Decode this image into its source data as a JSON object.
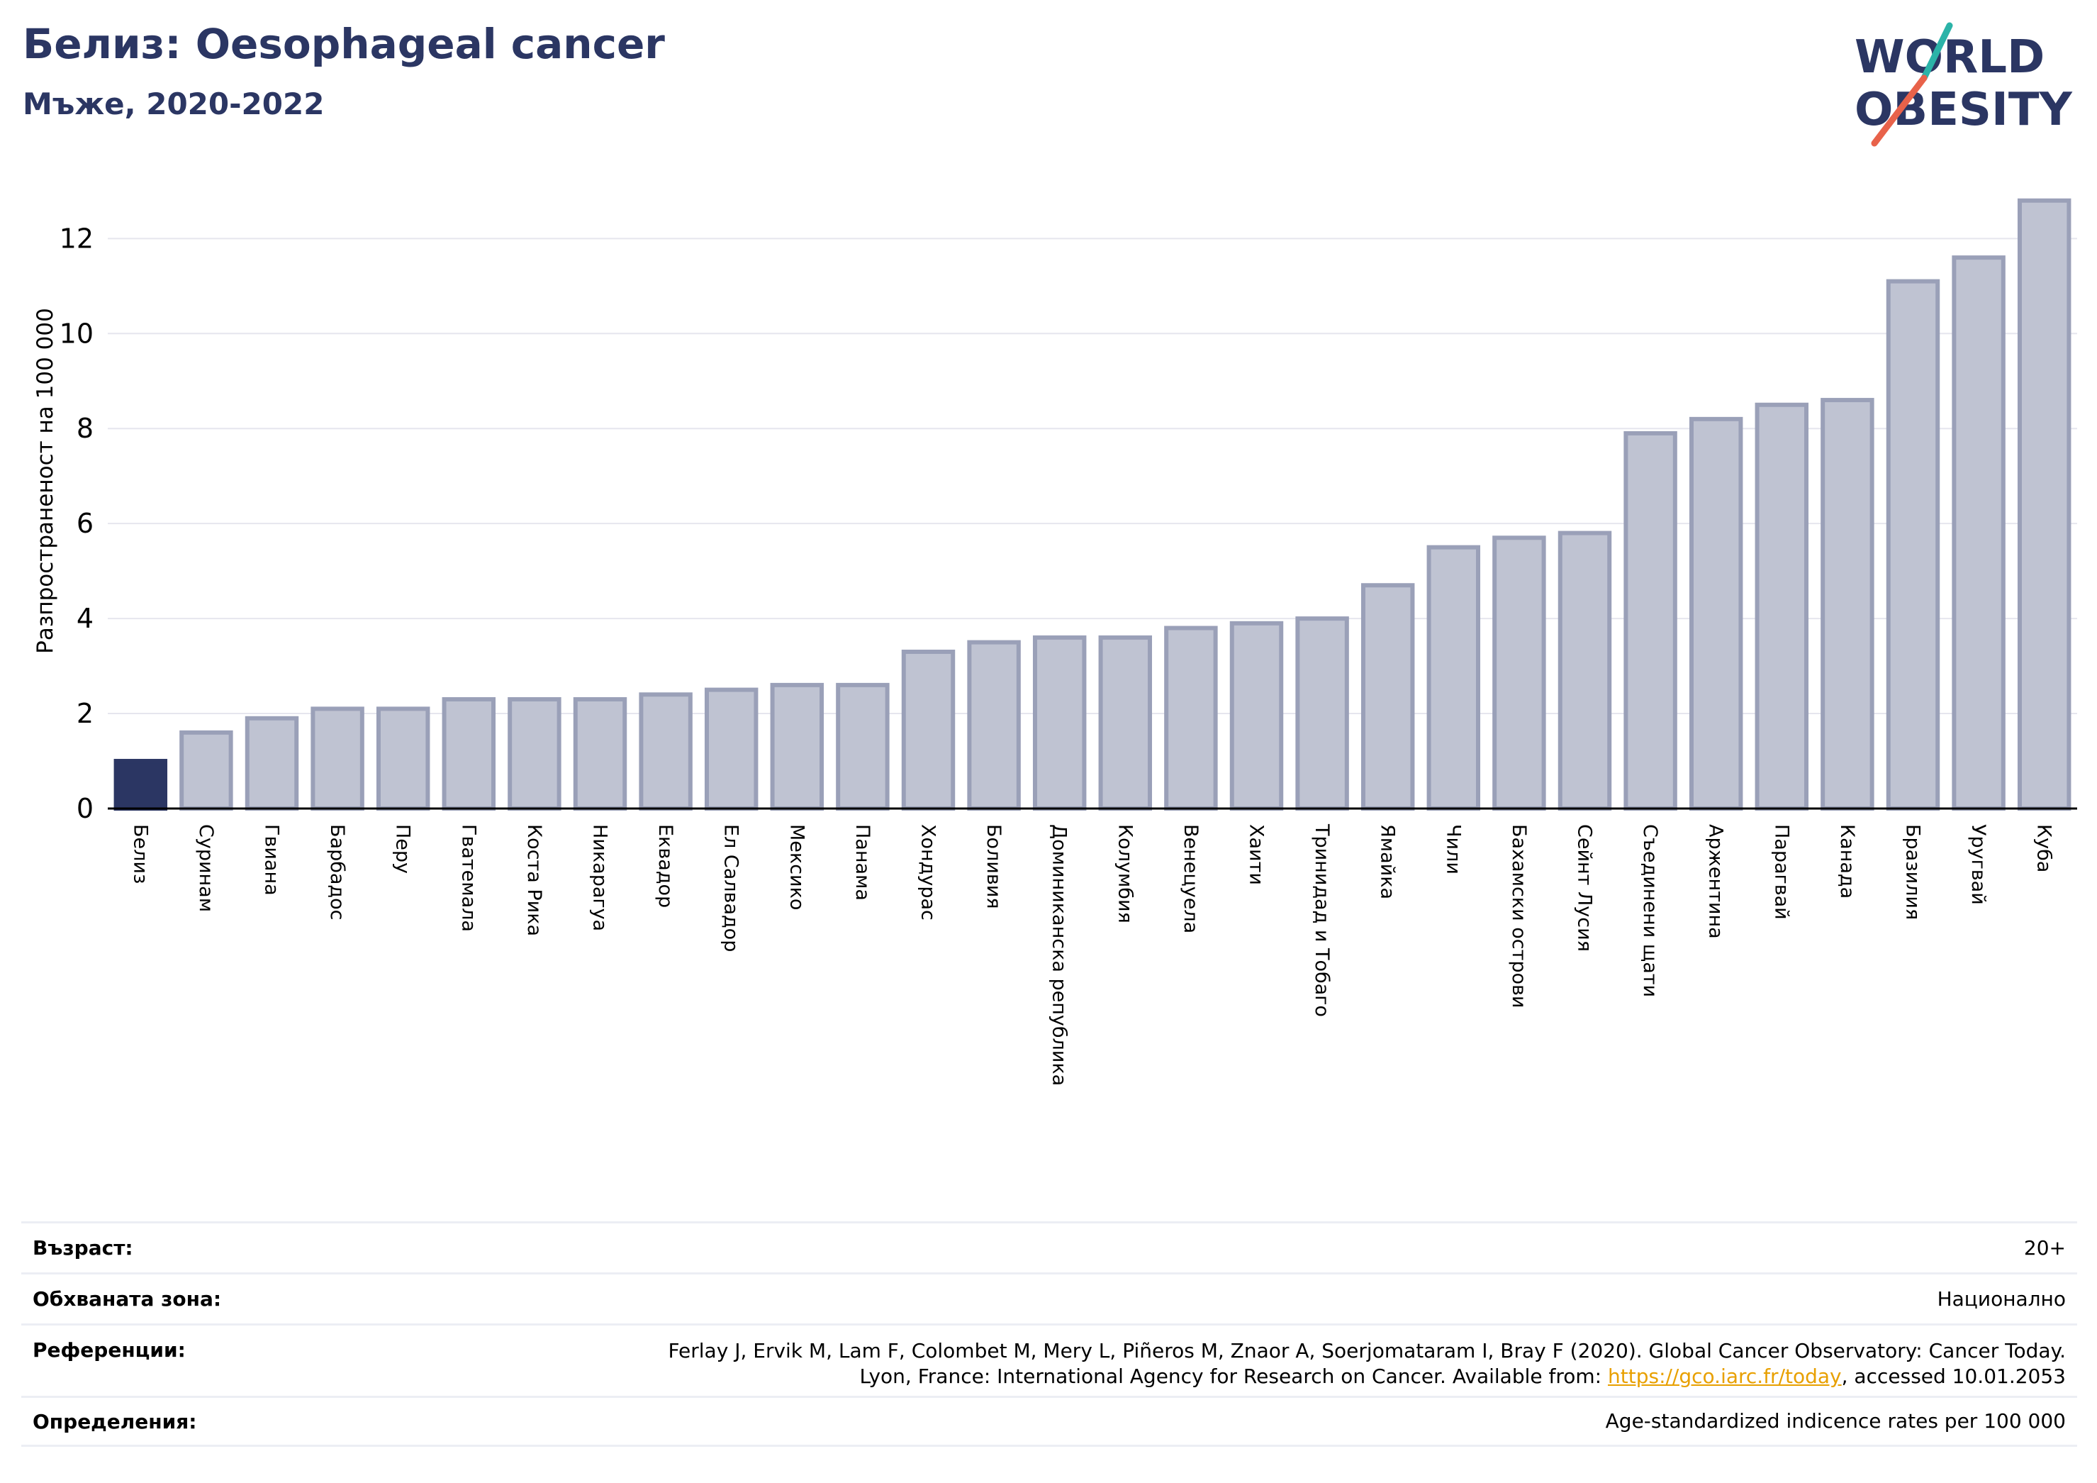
{
  "header": {
    "title": "Белиз: Oesophageal cancer",
    "subtitle": "Мъже, 2020-2022"
  },
  "logo": {
    "line1": "WORLD",
    "line2": "OBESITY",
    "colors": {
      "text": "#2b3663",
      "slash_top": "#2bb3a8",
      "slash_bottom": "#e8624a"
    }
  },
  "colors": {
    "highlight_bar": "#2b3663",
    "other_bar_fill": "#bfc3d2",
    "other_bar_edge": "#9aa0b8",
    "gridline": "#e6e6ee"
  },
  "chart_data": {
    "type": "bar",
    "ylabel": "Разпространеност  на 100 000",
    "ylim": [
      0,
      13.2
    ],
    "yticks": [
      0,
      2,
      4,
      6,
      8,
      10,
      12
    ],
    "grid": true,
    "highlight": "Белиз",
    "categories": [
      "Белиз",
      "Суринам",
      "Гвиана",
      "Барбадос",
      "Перу",
      "Гватемала",
      "Коста Рика",
      "Никарагуа",
      "Еквадор",
      "Ел Салвадор",
      "Мексико",
      "Панама",
      "Хондурас",
      "Боливия",
      "Доминиканска република",
      "Колумбия",
      "Венецуела",
      "Хаити",
      "Тринидад и Тобаго",
      "Ямайка",
      "Чили",
      "Бахамски острови",
      "Сейнт Лусия",
      "Съединени щати",
      "Аржентина",
      "Парагвай",
      "Канада",
      "Бразилия",
      "Уругвай",
      "Куба"
    ],
    "values": [
      1.0,
      1.6,
      1.9,
      2.1,
      2.1,
      2.3,
      2.3,
      2.3,
      2.4,
      2.5,
      2.6,
      2.6,
      3.3,
      3.5,
      3.6,
      3.6,
      3.8,
      3.9,
      4.0,
      4.7,
      5.5,
      5.7,
      5.8,
      7.9,
      8.2,
      8.5,
      8.6,
      11.1,
      11.6,
      12.8
    ]
  },
  "info": {
    "age_label": "Възраст:",
    "age_value": "20+",
    "area_label": "Обхваната зона:",
    "area_value": "Национално",
    "ref_label": "Референции:",
    "ref_line1": "Ferlay J, Ervik M, Lam F, Colombet M, Mery L, Piñeros M, Znaor A, Soerjomataram I, Bray F (2020). Global Cancer Observatory: Cancer Today.",
    "ref_line2_pre": "Lyon, France: International Agency for Research on Cancer. Available from: ",
    "ref_link": "https://gco.iarc.fr/today",
    "ref_line2_post": ", accessed 10.01.2053",
    "def_label": "Определения:",
    "def_value": "Age-standardized indicence rates per 100 000"
  }
}
